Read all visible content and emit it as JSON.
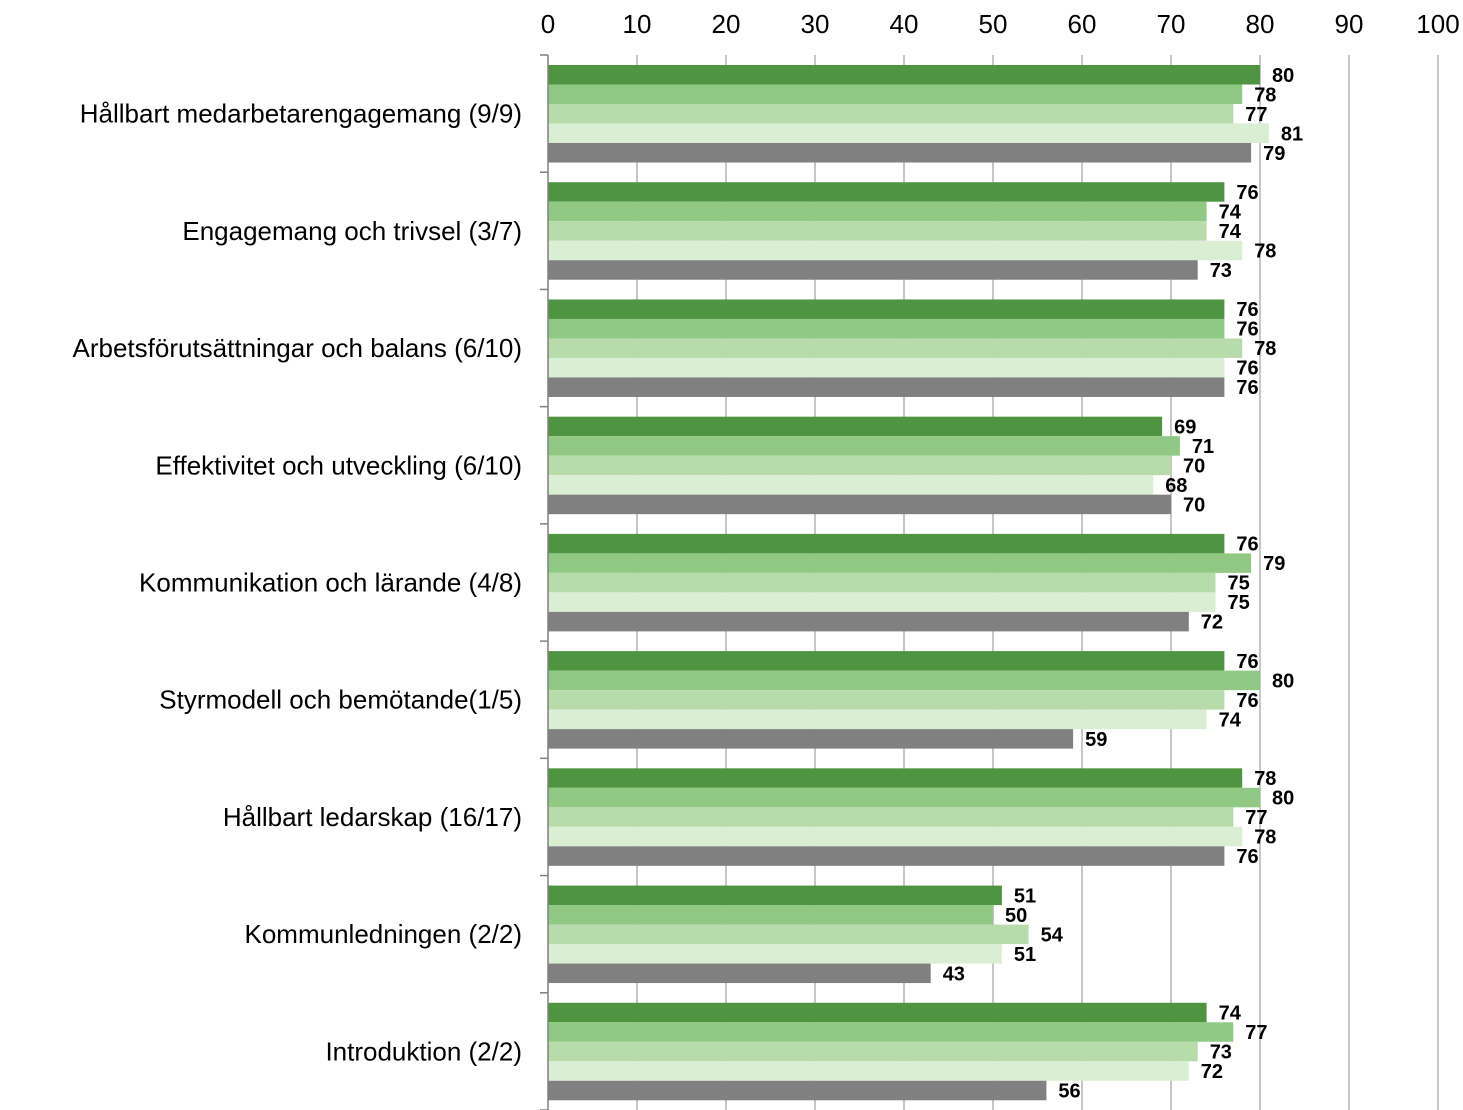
{
  "chart_data": {
    "type": "bar",
    "orientation": "horizontal",
    "xlim": [
      0,
      100
    ],
    "x_ticks": [
      0,
      10,
      20,
      30,
      40,
      50,
      60,
      70,
      80,
      90,
      100
    ],
    "x_tick_labels": [
      "0",
      "10",
      "20",
      "30",
      "40",
      "50",
      "60",
      "70",
      "80",
      "90",
      "100"
    ],
    "x_axis_position": "top",
    "grid": true,
    "legend": "none",
    "categories": [
      "Hållbart medarbetarengagemang (9/9)",
      "Engagemang och trivsel (3/7)",
      "Arbetsförutsättningar och balans (6/10)",
      "Effektivitet och utveckling (6/10)",
      "Kommunikation och lärande (4/8)",
      "Styrmodell och bemötande(1/5)",
      "Hållbart ledarskap (16/17)",
      "Kommunledningen (2/2)",
      "Introduktion (2/2)"
    ],
    "series": [
      {
        "color": "#4e9441",
        "values": [
          80,
          76,
          76,
          69,
          76,
          76,
          78,
          51,
          74
        ]
      },
      {
        "color": "#91c984",
        "values": [
          78,
          74,
          76,
          71,
          79,
          80,
          80,
          50,
          77
        ]
      },
      {
        "color": "#b7dbab",
        "values": [
          77,
          74,
          78,
          70,
          75,
          76,
          77,
          54,
          73
        ]
      },
      {
        "color": "#daeed4",
        "values": [
          81,
          78,
          76,
          68,
          75,
          74,
          78,
          51,
          72
        ]
      },
      {
        "color": "#808080",
        "values": [
          79,
          73,
          76,
          70,
          72,
          59,
          76,
          43,
          56
        ]
      }
    ]
  }
}
